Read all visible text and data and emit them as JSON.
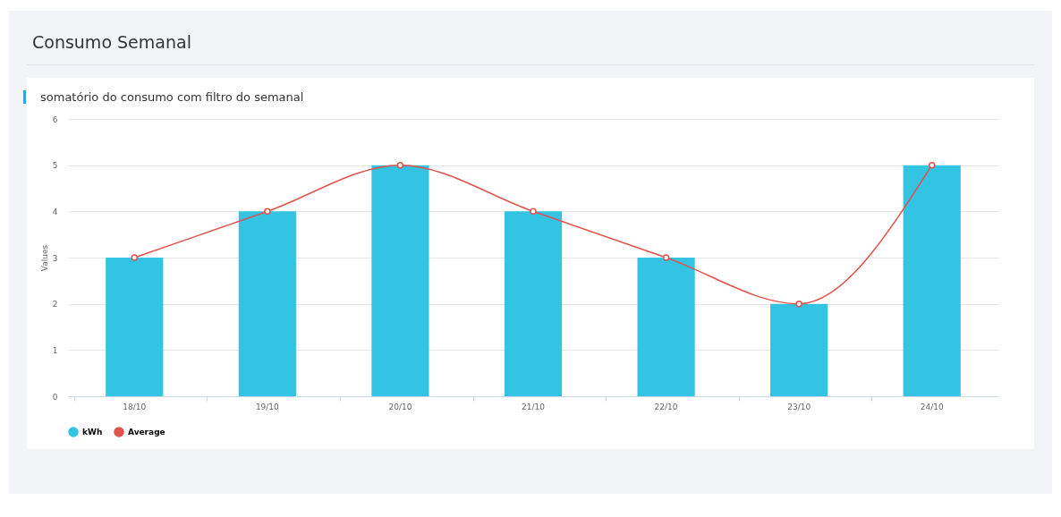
{
  "chart_data": {
    "type": "bar",
    "title": "Consumo Semanal",
    "subtitle": "somatório do consumo com filtro do semanal",
    "ylabel": "Values",
    "categories": [
      "18/10",
      "19/10",
      "20/10",
      "21/10",
      "22/10",
      "23/10",
      "24/10"
    ],
    "series": [
      {
        "name": "kWh",
        "color": "#33c3e3",
        "values": [
          3,
          4,
          5,
          4,
          3,
          2,
          5
        ]
      },
      {
        "name": "Average",
        "type": "line",
        "color": "#e0524a",
        "values": [
          3,
          4,
          5,
          4,
          3,
          2,
          5
        ]
      }
    ],
    "ylim": [
      0,
      6
    ],
    "yticks": [
      0,
      1,
      2,
      3,
      4,
      5,
      6
    ],
    "grid": "y",
    "legend": "bottom",
    "marker": "circle"
  }
}
